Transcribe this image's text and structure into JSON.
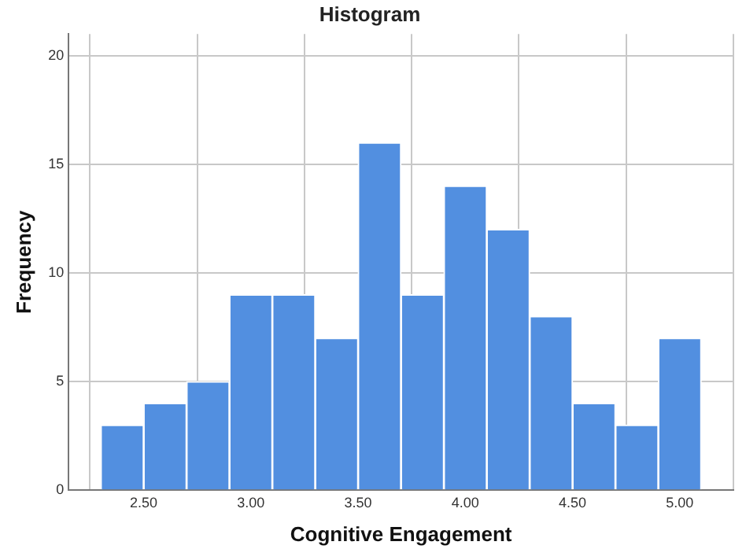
{
  "chart_data": {
    "type": "histogram",
    "title": "Histogram",
    "xlabel": "Cognitive Engagement",
    "ylabel": "Frequency",
    "bins": [
      2.3,
      2.5,
      2.7,
      2.9,
      3.1,
      3.3,
      3.5,
      3.7,
      3.9,
      4.1,
      4.3,
      4.5,
      4.7,
      4.9,
      5.1
    ],
    "values": [
      3,
      4,
      5,
      9,
      9,
      7,
      16,
      9,
      14,
      12,
      8,
      4,
      3,
      7
    ],
    "color": "#528fe0",
    "xlim": [
      2.15,
      5.25
    ],
    "xticks": [
      {
        "value": 2.5,
        "label": "2.50"
      },
      {
        "value": 3,
        "label": "3.00"
      },
      {
        "value": 3.5,
        "label": "3.50"
      },
      {
        "value": 4,
        "label": "4.00"
      },
      {
        "value": 4.5,
        "label": "4.50"
      },
      {
        "value": 5,
        "label": "5.00"
      }
    ],
    "ylim": [
      0,
      21
    ],
    "yticks": [
      0,
      5,
      10,
      15,
      20
    ],
    "grid": true
  }
}
